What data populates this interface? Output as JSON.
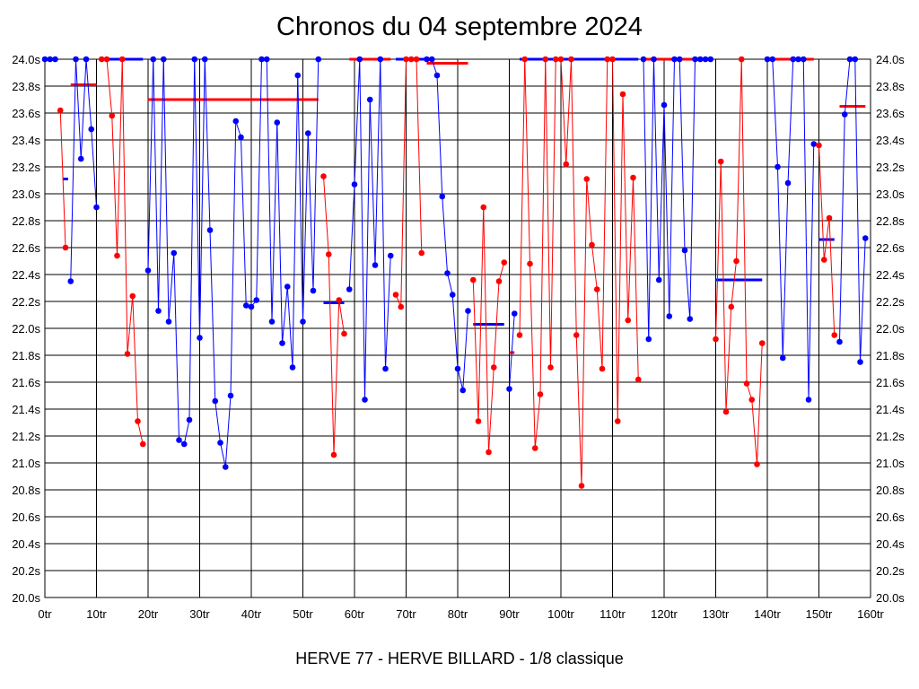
{
  "chart_data": {
    "type": "line",
    "title": "Chronos du 04 septembre 2024",
    "caption": "HERVE 77 - HERVE BILLARD - 1/8 classique",
    "xlim": [
      0,
      160
    ],
    "ylim": [
      20.0,
      24.0
    ],
    "x_ticks": [
      0,
      10,
      20,
      30,
      40,
      50,
      60,
      70,
      80,
      90,
      100,
      110,
      120,
      130,
      140,
      150,
      160
    ],
    "x_tick_labels": [
      "0tr",
      "10tr",
      "20tr",
      "30tr",
      "40tr",
      "50tr",
      "60tr",
      "70tr",
      "80tr",
      "90tr",
      "100tr",
      "110tr",
      "120tr",
      "130tr",
      "140tr",
      "150tr",
      "160tr"
    ],
    "y_ticks": [
      20.0,
      20.2,
      20.4,
      20.6,
      20.8,
      21.0,
      21.2,
      21.4,
      21.6,
      21.8,
      22.0,
      22.2,
      22.4,
      22.6,
      22.8,
      23.0,
      23.2,
      23.4,
      23.6,
      23.8,
      24.0
    ],
    "y_tick_labels": [
      "20.0s",
      "20.2s",
      "20.4s",
      "20.6s",
      "20.8s",
      "21.0s",
      "21.2s",
      "21.4s",
      "21.6s",
      "21.8s",
      "22.0s",
      "22.2s",
      "22.4s",
      "22.6s",
      "22.8s",
      "23.0s",
      "23.2s",
      "23.4s",
      "23.6s",
      "23.8s",
      "24.0s"
    ],
    "grid": true,
    "legend": "none",
    "colors": {
      "blue": "#0000ff",
      "red": "#ff0000"
    },
    "runs": [
      {
        "color": "blue",
        "points": [
          [
            0,
            24.0
          ],
          [
            1,
            24.0
          ],
          [
            2,
            24.0
          ]
        ]
      },
      {
        "color": "red",
        "points": [
          [
            3,
            23.62
          ],
          [
            4,
            22.6
          ]
        ]
      },
      {
        "color": "blue",
        "points": [
          [
            5,
            22.35
          ],
          [
            6,
            24.0
          ],
          [
            7,
            23.26
          ],
          [
            8,
            24.0
          ],
          [
            9,
            23.48
          ],
          [
            10,
            22.9
          ]
        ]
      },
      {
        "color": "red",
        "points": [
          [
            11,
            24.0
          ],
          [
            12,
            24.0
          ],
          [
            13,
            23.58
          ],
          [
            14,
            22.54
          ],
          [
            15,
            24.0
          ],
          [
            16,
            21.81
          ],
          [
            17,
            22.24
          ],
          [
            18,
            21.31
          ],
          [
            19,
            21.14
          ]
        ]
      },
      {
        "color": "blue",
        "points": [
          [
            20,
            22.43
          ],
          [
            21,
            24.0
          ],
          [
            22,
            22.13
          ],
          [
            23,
            24.0
          ],
          [
            24,
            22.05
          ],
          [
            25,
            22.56
          ],
          [
            26,
            21.17
          ],
          [
            27,
            21.14
          ],
          [
            28,
            21.32
          ],
          [
            29,
            24.0
          ],
          [
            30,
            21.93
          ],
          [
            31,
            24.0
          ],
          [
            32,
            22.73
          ],
          [
            33,
            21.46
          ],
          [
            34,
            21.15
          ],
          [
            35,
            20.97
          ],
          [
            36,
            21.5
          ],
          [
            37,
            23.54
          ],
          [
            38,
            23.42
          ],
          [
            39,
            22.17
          ],
          [
            40,
            22.16
          ],
          [
            41,
            22.21
          ],
          [
            42,
            24.0
          ],
          [
            43,
            24.0
          ],
          [
            44,
            22.05
          ],
          [
            45,
            23.53
          ],
          [
            46,
            21.89
          ],
          [
            47,
            22.31
          ],
          [
            48,
            21.71
          ],
          [
            49,
            23.88
          ],
          [
            50,
            22.05
          ],
          [
            51,
            23.45
          ],
          [
            52,
            22.28
          ],
          [
            53,
            24.0
          ]
        ]
      },
      {
        "color": "red",
        "points": [
          [
            54,
            23.13
          ],
          [
            55,
            22.55
          ],
          [
            56,
            21.06
          ],
          [
            57,
            22.21
          ],
          [
            58,
            21.96
          ]
        ]
      },
      {
        "color": "blue",
        "points": [
          [
            59,
            22.29
          ],
          [
            60,
            23.07
          ],
          [
            61,
            24.0
          ],
          [
            62,
            21.47
          ],
          [
            63,
            23.7
          ],
          [
            64,
            22.47
          ],
          [
            65,
            24.0
          ],
          [
            66,
            21.7
          ],
          [
            67,
            22.54
          ]
        ]
      },
      {
        "color": "red",
        "points": [
          [
            68,
            22.25
          ],
          [
            69,
            22.16
          ],
          [
            70,
            24.0
          ],
          [
            71,
            24.0
          ],
          [
            72,
            24.0
          ],
          [
            73,
            22.56
          ]
        ]
      },
      {
        "color": "blue",
        "points": [
          [
            74,
            24.0
          ],
          [
            75,
            24.0
          ],
          [
            76,
            23.88
          ],
          [
            77,
            22.98
          ],
          [
            78,
            22.41
          ],
          [
            79,
            22.25
          ],
          [
            80,
            21.7
          ],
          [
            81,
            21.54
          ],
          [
            82,
            22.13
          ]
        ]
      },
      {
        "color": "red",
        "points": [
          [
            83,
            22.36
          ],
          [
            84,
            21.31
          ],
          [
            85,
            22.9
          ],
          [
            86,
            21.08
          ],
          [
            87,
            21.71
          ],
          [
            88,
            22.35
          ],
          [
            89,
            22.49
          ]
        ]
      },
      {
        "color": "blue",
        "points": [
          [
            90,
            21.55
          ],
          [
            91,
            22.11
          ]
        ]
      },
      {
        "color": "red",
        "points": [
          [
            92,
            21.95
          ],
          [
            93,
            24.0
          ],
          [
            94,
            22.48
          ],
          [
            95,
            21.11
          ],
          [
            96,
            21.51
          ],
          [
            97,
            24.0
          ],
          [
            98,
            21.71
          ],
          [
            99,
            24.0
          ],
          [
            100,
            24.0
          ],
          [
            101,
            23.22
          ],
          [
            102,
            24.0
          ],
          [
            103,
            21.95
          ],
          [
            104,
            20.83
          ],
          [
            105,
            23.11
          ],
          [
            106,
            22.62
          ],
          [
            107,
            22.29
          ],
          [
            108,
            21.7
          ],
          [
            109,
            24.0
          ],
          [
            110,
            24.0
          ],
          [
            111,
            21.31
          ],
          [
            112,
            23.74
          ],
          [
            113,
            22.06
          ],
          [
            114,
            23.12
          ],
          [
            115,
            21.62
          ]
        ]
      },
      {
        "color": "blue",
        "points": [
          [
            116,
            24.0
          ],
          [
            117,
            21.92
          ],
          [
            118,
            24.0
          ],
          [
            119,
            22.36
          ],
          [
            120,
            23.66
          ],
          [
            121,
            22.09
          ],
          [
            122,
            24.0
          ],
          [
            123,
            24.0
          ],
          [
            124,
            22.58
          ],
          [
            125,
            22.07
          ],
          [
            126,
            24.0
          ],
          [
            127,
            24.0
          ],
          [
            128,
            24.0
          ],
          [
            129,
            24.0
          ]
        ]
      },
      {
        "color": "red",
        "points": [
          [
            130,
            21.92
          ],
          [
            131,
            23.24
          ],
          [
            132,
            21.38
          ],
          [
            133,
            22.16
          ],
          [
            134,
            22.5
          ],
          [
            135,
            24.0
          ],
          [
            136,
            21.59
          ],
          [
            137,
            21.47
          ],
          [
            138,
            20.99
          ],
          [
            139,
            21.89
          ]
        ]
      },
      {
        "color": "blue",
        "points": [
          [
            140,
            24.0
          ],
          [
            141,
            24.0
          ],
          [
            142,
            23.2
          ],
          [
            143,
            21.78
          ],
          [
            144,
            23.08
          ],
          [
            145,
            24.0
          ],
          [
            146,
            24.0
          ],
          [
            147,
            24.0
          ],
          [
            148,
            21.47
          ],
          [
            149,
            23.37
          ]
        ]
      },
      {
        "color": "red",
        "points": [
          [
            150,
            23.36
          ],
          [
            151,
            22.51
          ],
          [
            152,
            22.82
          ],
          [
            153,
            21.95
          ]
        ]
      },
      {
        "color": "blue",
        "points": [
          [
            154,
            21.9
          ],
          [
            155,
            23.59
          ],
          [
            156,
            24.0
          ],
          [
            157,
            24.0
          ],
          [
            158,
            21.75
          ],
          [
            159,
            22.67
          ]
        ]
      }
    ],
    "averages": [
      {
        "color": "blue",
        "x": [
          3.5,
          4.5
        ],
        "y": 23.11
      },
      {
        "color": "red",
        "x": [
          5,
          10
        ],
        "y": 23.81
      },
      {
        "color": "blue",
        "x": [
          10.5,
          19
        ],
        "y": 24.0
      },
      {
        "color": "red",
        "x": [
          20,
          53
        ],
        "y": 23.7
      },
      {
        "color": "blue",
        "x": [
          54,
          58
        ],
        "y": 22.19
      },
      {
        "color": "red",
        "x": [
          59,
          67
        ],
        "y": 24.0
      },
      {
        "color": "blue",
        "x": [
          68,
          74
        ],
        "y": 24.0
      },
      {
        "color": "red",
        "x": [
          74,
          82
        ],
        "y": 23.97
      },
      {
        "color": "blue",
        "x": [
          83,
          89
        ],
        "y": 22.03
      },
      {
        "color": "red",
        "x": [
          90,
          91
        ],
        "y": 21.82
      },
      {
        "color": "blue",
        "x": [
          92,
          115
        ],
        "y": 24.0
      },
      {
        "color": "red",
        "x": [
          116,
          129
        ],
        "y": 24.0
      },
      {
        "color": "blue",
        "x": [
          130,
          139
        ],
        "y": 22.36
      },
      {
        "color": "red",
        "x": [
          140,
          149
        ],
        "y": 24.0
      },
      {
        "color": "blue",
        "x": [
          150,
          153
        ],
        "y": 22.66
      },
      {
        "color": "red",
        "x": [
          154,
          159
        ],
        "y": 23.65
      }
    ]
  }
}
